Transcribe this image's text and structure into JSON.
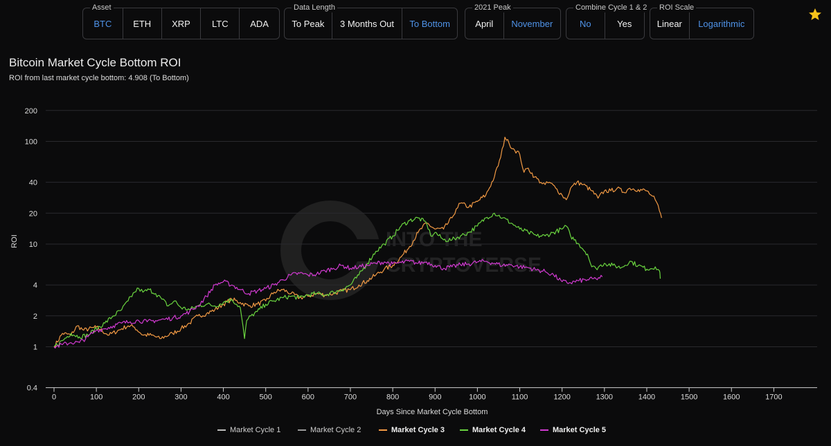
{
  "toolbar": {
    "groups": [
      {
        "label": "Asset",
        "options": [
          "BTC",
          "ETH",
          "XRP",
          "LTC",
          "ADA"
        ],
        "selected": 0
      },
      {
        "label": "Data Length",
        "options": [
          "To Peak",
          "3 Months Out",
          "To Bottom"
        ],
        "selected": 2
      },
      {
        "label": "2021 Peak",
        "options": [
          "April",
          "November"
        ],
        "selected": 1
      },
      {
        "label": "Combine Cycle 1 & 2",
        "options": [
          "No",
          "Yes"
        ],
        "selected": 0
      },
      {
        "label": "ROI Scale",
        "options": [
          "Linear",
          "Logarithmic"
        ],
        "selected": 1
      }
    ],
    "favorite_icon": "star-icon"
  },
  "title": "Bitcoin Market Cycle Bottom ROI",
  "subtitle": "ROI from last market cycle bottom: 4.908 (To Bottom)",
  "watermark": {
    "line1": "INTO THE",
    "line2": "CRYPTOVERSE"
  },
  "colors": {
    "cycle1": "#bdbdbd",
    "cycle2": "#9a9a9a",
    "cycle3": "#f29a44",
    "cycle4": "#6ad43f",
    "cycle5": "#d13ad1",
    "selected": "#4f93e8",
    "star": "#f6c21a"
  },
  "chart_data": {
    "type": "line",
    "xlabel": "Days Since Market Cycle Bottom",
    "ylabel": "ROI",
    "yscale": "log",
    "xlim": [
      0,
      1750
    ],
    "ylim": [
      0.4,
      200
    ],
    "x_ticks": [
      0,
      100,
      200,
      300,
      400,
      500,
      600,
      700,
      800,
      900,
      1000,
      1100,
      1200,
      1300,
      1400,
      1500,
      1600,
      1700
    ],
    "y_ticks": [
      0.4,
      1,
      2,
      4,
      10,
      20,
      40,
      100,
      200
    ],
    "grid": true,
    "legend": "bottom",
    "series": [
      {
        "name": "Market Cycle 1",
        "color": "#bdbdbd",
        "bold": false,
        "points": []
      },
      {
        "name": "Market Cycle 2",
        "color": "#9a9a9a",
        "bold": false,
        "points": []
      },
      {
        "name": "Market Cycle 3",
        "color": "#f29a44",
        "bold": true,
        "points": [
          [
            0,
            1
          ],
          [
            20,
            1.35
          ],
          [
            40,
            1.3
          ],
          [
            55,
            1.6
          ],
          [
            70,
            1.45
          ],
          [
            100,
            1.55
          ],
          [
            130,
            1.3
          ],
          [
            160,
            1.5
          ],
          [
            175,
            1.6
          ],
          [
            190,
            1.55
          ],
          [
            210,
            1.3
          ],
          [
            230,
            1.3
          ],
          [
            250,
            1.2
          ],
          [
            280,
            1.35
          ],
          [
            300,
            1.5
          ],
          [
            320,
            1.7
          ],
          [
            340,
            2.0
          ],
          [
            360,
            2.1
          ],
          [
            380,
            2.3
          ],
          [
            400,
            2.6
          ],
          [
            420,
            2.9
          ],
          [
            440,
            2.7
          ],
          [
            460,
            2.5
          ],
          [
            480,
            2.6
          ],
          [
            500,
            2.8
          ],
          [
            520,
            3.4
          ],
          [
            540,
            3.6
          ],
          [
            560,
            3.3
          ],
          [
            580,
            3.0
          ],
          [
            600,
            3.1
          ],
          [
            620,
            3.3
          ],
          [
            640,
            3.2
          ],
          [
            660,
            3.3
          ],
          [
            680,
            3.5
          ],
          [
            700,
            3.6
          ],
          [
            720,
            4.0
          ],
          [
            740,
            4.4
          ],
          [
            760,
            5.0
          ],
          [
            780,
            5.7
          ],
          [
            800,
            6.2
          ],
          [
            820,
            7.5
          ],
          [
            840,
            9.5
          ],
          [
            860,
            13
          ],
          [
            880,
            16
          ],
          [
            900,
            14
          ],
          [
            920,
            14
          ],
          [
            940,
            18
          ],
          [
            950,
            22
          ],
          [
            960,
            25
          ],
          [
            980,
            23
          ],
          [
            1000,
            26
          ],
          [
            1020,
            30
          ],
          [
            1040,
            45
          ],
          [
            1055,
            70
          ],
          [
            1065,
            110
          ],
          [
            1075,
            95
          ],
          [
            1085,
            85
          ],
          [
            1100,
            75
          ],
          [
            1110,
            50
          ],
          [
            1120,
            55
          ],
          [
            1135,
            45
          ],
          [
            1150,
            40
          ],
          [
            1160,
            38
          ],
          [
            1170,
            40
          ],
          [
            1185,
            35
          ],
          [
            1200,
            30
          ],
          [
            1210,
            27
          ],
          [
            1220,
            35
          ],
          [
            1235,
            40
          ],
          [
            1250,
            38
          ],
          [
            1270,
            33
          ],
          [
            1285,
            28
          ],
          [
            1300,
            33
          ],
          [
            1315,
            33
          ],
          [
            1330,
            35
          ],
          [
            1345,
            32
          ],
          [
            1360,
            35
          ],
          [
            1380,
            34
          ],
          [
            1400,
            33
          ],
          [
            1410,
            30
          ],
          [
            1420,
            27
          ],
          [
            1430,
            21
          ],
          [
            1435,
            18
          ]
        ]
      },
      {
        "name": "Market Cycle 4",
        "color": "#6ad43f",
        "bold": true,
        "points": [
          [
            0,
            1
          ],
          [
            20,
            1.15
          ],
          [
            40,
            1.35
          ],
          [
            60,
            1.25
          ],
          [
            80,
            1.3
          ],
          [
            100,
            1.5
          ],
          [
            120,
            1.7
          ],
          [
            140,
            2.0
          ],
          [
            160,
            2.3
          ],
          [
            175,
            2.8
          ],
          [
            190,
            3.4
          ],
          [
            200,
            3.7
          ],
          [
            210,
            3.4
          ],
          [
            225,
            3.6
          ],
          [
            240,
            3.3
          ],
          [
            255,
            2.9
          ],
          [
            270,
            2.5
          ],
          [
            285,
            2.8
          ],
          [
            300,
            2.4
          ],
          [
            320,
            2.3
          ],
          [
            340,
            2.5
          ],
          [
            360,
            2.6
          ],
          [
            380,
            2.5
          ],
          [
            400,
            2.7
          ],
          [
            420,
            2.9
          ],
          [
            440,
            2.4
          ],
          [
            450,
            1.2
          ],
          [
            455,
            1.8
          ],
          [
            465,
            2.0
          ],
          [
            480,
            2.2
          ],
          [
            500,
            2.6
          ],
          [
            520,
            2.8
          ],
          [
            540,
            3.0
          ],
          [
            560,
            3.1
          ],
          [
            580,
            3.0
          ],
          [
            600,
            3.2
          ],
          [
            620,
            3.3
          ],
          [
            640,
            3.2
          ],
          [
            660,
            3.4
          ],
          [
            680,
            3.6
          ],
          [
            700,
            4.0
          ],
          [
            720,
            5.0
          ],
          [
            740,
            6.5
          ],
          [
            760,
            8.5
          ],
          [
            780,
            10
          ],
          [
            800,
            12
          ],
          [
            820,
            15
          ],
          [
            840,
            17
          ],
          [
            860,
            18
          ],
          [
            880,
            16
          ],
          [
            890,
            12
          ],
          [
            900,
            13
          ],
          [
            920,
            11
          ],
          [
            940,
            11
          ],
          [
            960,
            12
          ],
          [
            980,
            13
          ],
          [
            1000,
            15
          ],
          [
            1020,
            18
          ],
          [
            1040,
            20
          ],
          [
            1060,
            18
          ],
          [
            1080,
            16
          ],
          [
            1100,
            14
          ],
          [
            1120,
            13
          ],
          [
            1140,
            12
          ],
          [
            1160,
            12
          ],
          [
            1180,
            13
          ],
          [
            1200,
            14
          ],
          [
            1210,
            15
          ],
          [
            1220,
            12
          ],
          [
            1240,
            10
          ],
          [
            1260,
            8
          ],
          [
            1270,
            6
          ],
          [
            1280,
            5.8
          ],
          [
            1300,
            6.5
          ],
          [
            1320,
            6.2
          ],
          [
            1340,
            5.9
          ],
          [
            1360,
            6.8
          ],
          [
            1380,
            6.2
          ],
          [
            1400,
            5.7
          ],
          [
            1420,
            6.0
          ],
          [
            1430,
            5.5
          ],
          [
            1432,
            4.6
          ]
        ]
      },
      {
        "name": "Market Cycle 5",
        "color": "#d13ad1",
        "bold": true,
        "points": [
          [
            0,
            1
          ],
          [
            20,
            1.05
          ],
          [
            40,
            1.1
          ],
          [
            60,
            1.1
          ],
          [
            80,
            1.25
          ],
          [
            100,
            1.45
          ],
          [
            120,
            1.5
          ],
          [
            140,
            1.6
          ],
          [
            160,
            1.7
          ],
          [
            180,
            1.75
          ],
          [
            200,
            1.8
          ],
          [
            220,
            1.75
          ],
          [
            240,
            1.8
          ],
          [
            260,
            1.85
          ],
          [
            280,
            1.9
          ],
          [
            300,
            2.0
          ],
          [
            320,
            2.2
          ],
          [
            340,
            2.5
          ],
          [
            360,
            3.1
          ],
          [
            380,
            4.0
          ],
          [
            400,
            4.3
          ],
          [
            420,
            4.0
          ],
          [
            440,
            3.6
          ],
          [
            460,
            3.3
          ],
          [
            480,
            3.5
          ],
          [
            500,
            3.7
          ],
          [
            520,
            4.0
          ],
          [
            540,
            4.5
          ],
          [
            560,
            5.0
          ],
          [
            580,
            5.2
          ],
          [
            600,
            5.0
          ],
          [
            620,
            5.1
          ],
          [
            640,
            5.5
          ],
          [
            660,
            5.8
          ],
          [
            680,
            6.2
          ],
          [
            700,
            5.8
          ],
          [
            720,
            6.0
          ],
          [
            740,
            6.2
          ],
          [
            760,
            6.5
          ],
          [
            780,
            6.7
          ],
          [
            800,
            6.4
          ],
          [
            820,
            6.6
          ],
          [
            840,
            6.8
          ],
          [
            860,
            6.5
          ],
          [
            880,
            6.7
          ],
          [
            900,
            6.2
          ],
          [
            920,
            5.8
          ],
          [
            940,
            6.0
          ],
          [
            960,
            6.3
          ],
          [
            980,
            6.4
          ],
          [
            1000,
            6.7
          ],
          [
            1020,
            6.8
          ],
          [
            1040,
            6.5
          ],
          [
            1060,
            6.2
          ],
          [
            1080,
            6.3
          ],
          [
            1100,
            6.0
          ],
          [
            1120,
            5.9
          ],
          [
            1140,
            5.6
          ],
          [
            1160,
            5.4
          ],
          [
            1180,
            5.0
          ],
          [
            1200,
            4.3
          ],
          [
            1220,
            4.2
          ],
          [
            1240,
            4.4
          ],
          [
            1260,
            4.5
          ],
          [
            1280,
            4.6
          ],
          [
            1295,
            4.8
          ]
        ]
      }
    ]
  }
}
